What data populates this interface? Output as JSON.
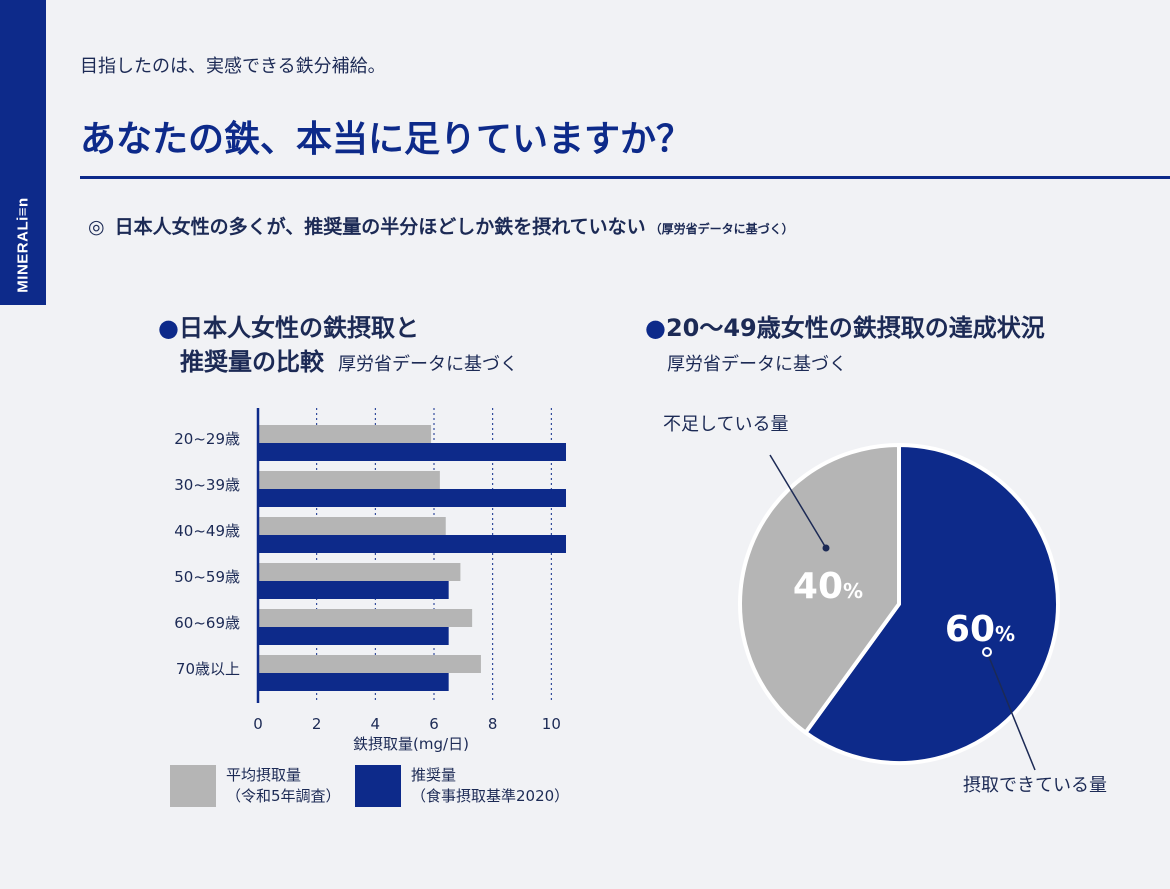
{
  "brand": "MINERALi≡n",
  "tagline": "目指したのは、実感できる鉄分補給。",
  "title": "あなたの鉄、本当に足りていますか？",
  "subheading": {
    "mark": "◎",
    "text": "日本人女性の多くが、推奨量の半分ほどしか鉄を摂れていない",
    "note": "（厚労省データに基づく）"
  },
  "left_heading": {
    "bullet": "●",
    "line1": "日本人女性の鉄摂取と",
    "line2": "推奨量の比較",
    "source": "厚労省データに基づく"
  },
  "right_heading": {
    "bullet": "●",
    "line1": "20〜49歳女性の鉄摂取の達成状況",
    "source": "厚労省データに基づく"
  },
  "legend": {
    "avg_line1": "平均摂取量",
    "avg_line2": "（令和5年調査）",
    "rec_line1": "推奨量",
    "rec_line2": "（食事摂取基準2020）"
  },
  "colors": {
    "navy": "#0d2a8a",
    "gray": "#b5b5b5"
  },
  "chart_data": [
    {
      "type": "bar",
      "orientation": "horizontal",
      "categories": [
        "20~29歳",
        "30~39歳",
        "40~49歳",
        "50~59歳",
        "60~69歳",
        "70歳以上"
      ],
      "series": [
        {
          "name": "平均摂取量（令和5年調査）",
          "color": "#b5b5b5",
          "values": [
            5.9,
            6.2,
            6.4,
            6.9,
            7.3,
            7.6
          ]
        },
        {
          "name": "推奨量（食事摂取基準2020）",
          "color": "#0d2a8a",
          "values": [
            10.5,
            10.5,
            10.5,
            6.5,
            6.5,
            6.5
          ]
        }
      ],
      "xlabel": "鉄摂取量(mg/日)",
      "xticks": [
        0,
        2,
        4,
        6,
        8,
        10
      ],
      "xlim": [
        0,
        10.5
      ],
      "grid": "vertical dotted"
    },
    {
      "type": "pie",
      "labels": [
        "摂取できている量",
        "不足している量"
      ],
      "values": [
        60,
        40
      ],
      "value_labels": [
        "60",
        "40"
      ],
      "unit": "%",
      "colors": [
        "#0d2a8a",
        "#b5b5b5"
      ]
    }
  ]
}
